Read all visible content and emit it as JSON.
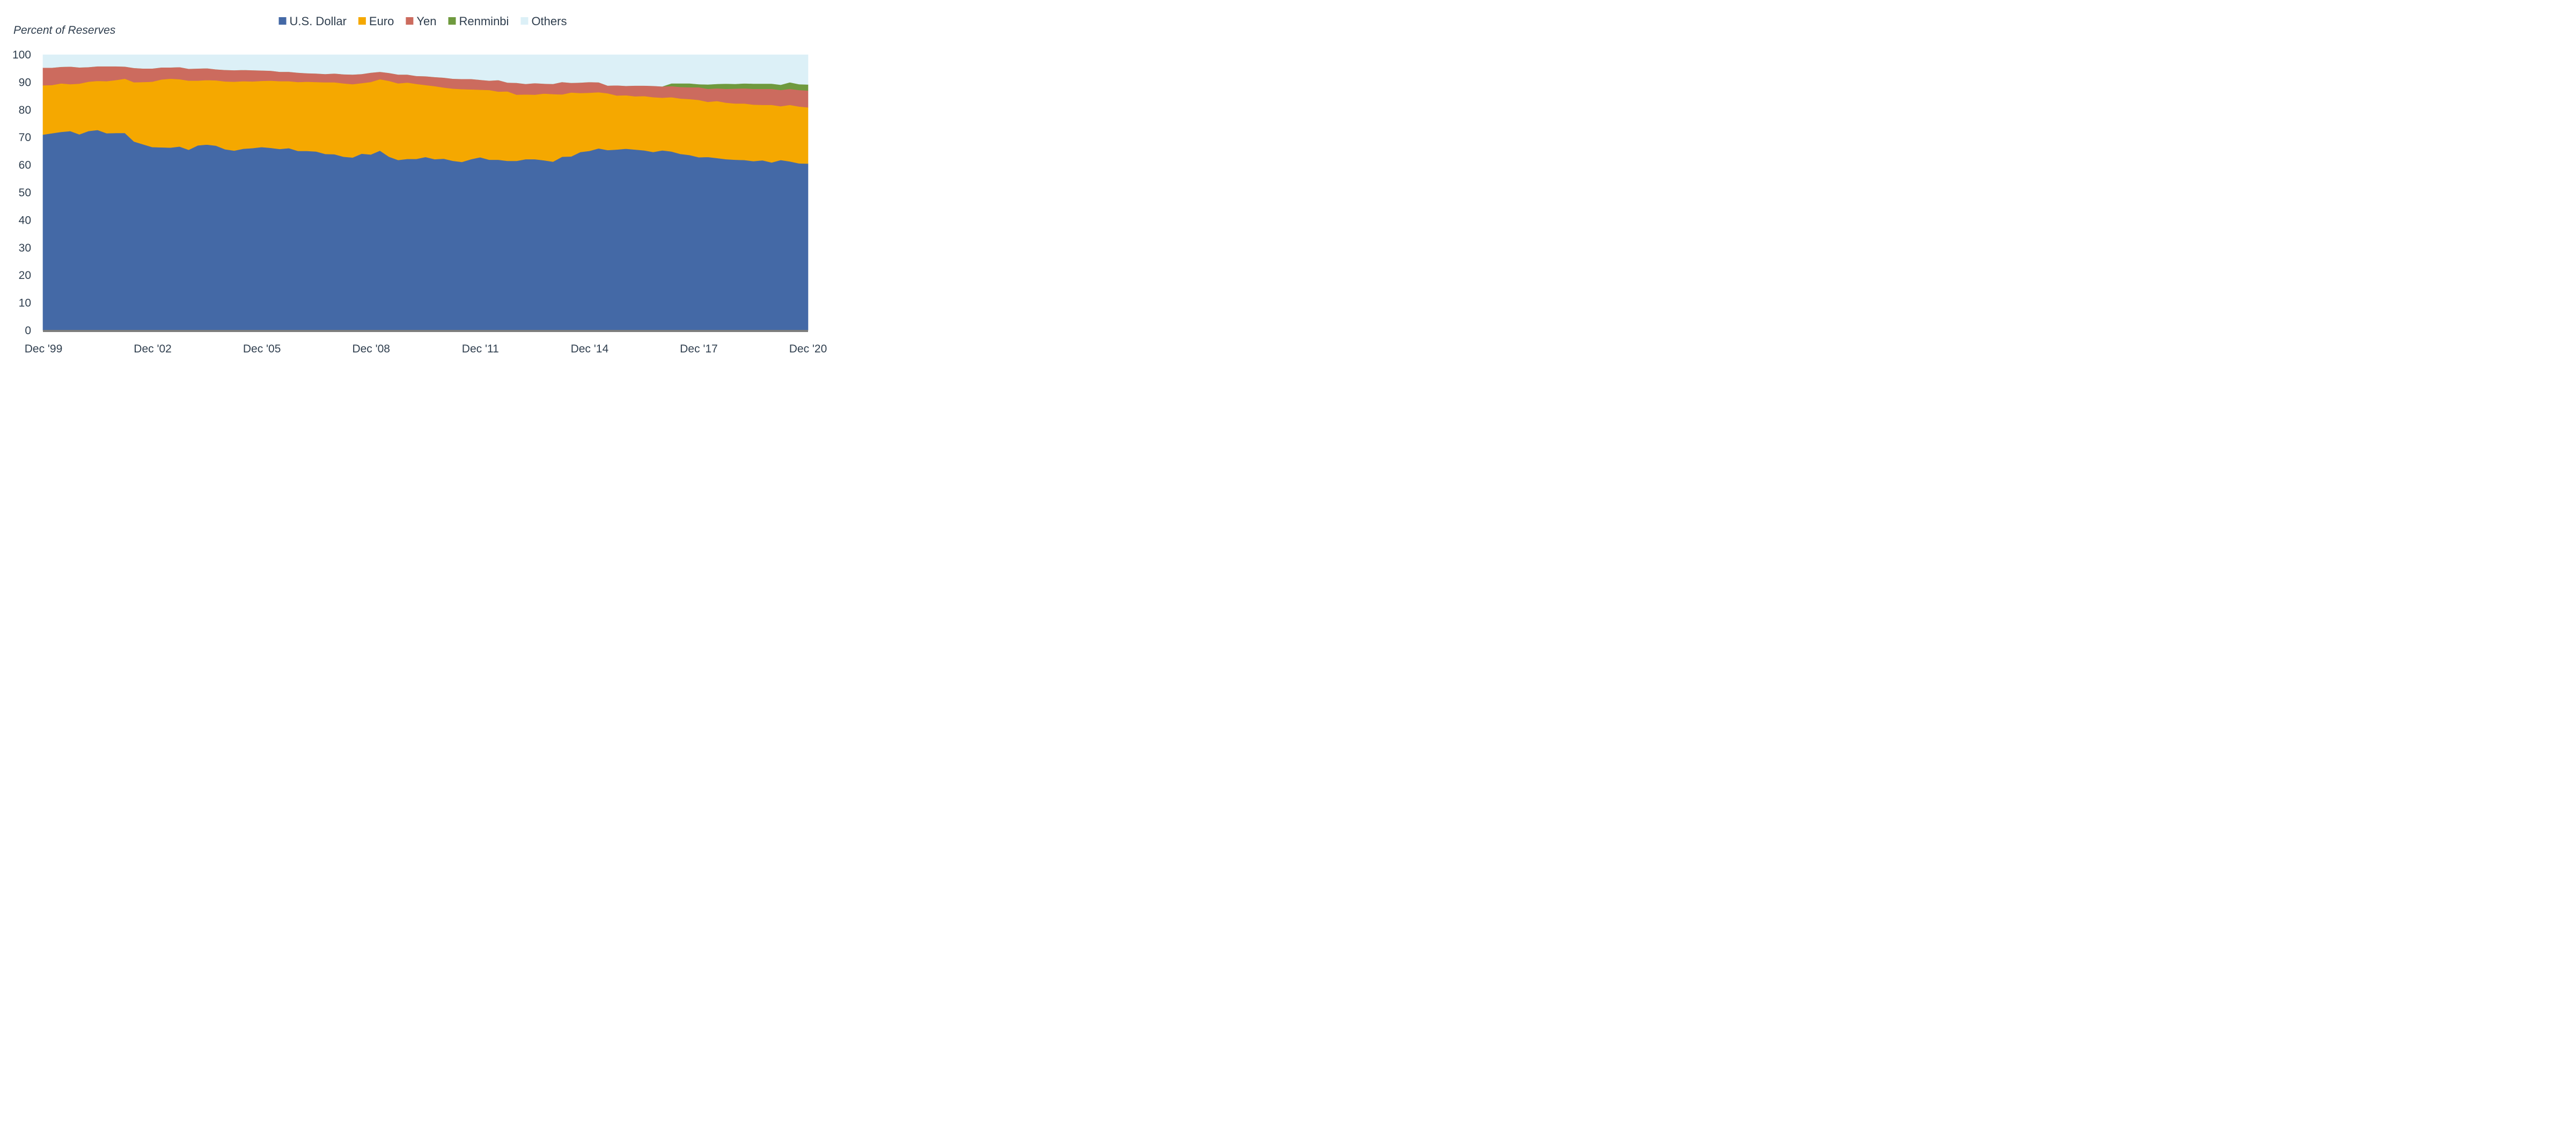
{
  "chart_data": {
    "type": "area",
    "stacked": true,
    "ylabel": "Percent of Reserves",
    "ylim": [
      0,
      100
    ],
    "y_ticks": [
      0,
      10,
      20,
      30,
      40,
      50,
      60,
      70,
      80,
      90,
      100
    ],
    "x_tick_labels": [
      "Dec '99",
      "Dec '02",
      "Dec '05",
      "Dec '08",
      "Dec '11",
      "Dec '14",
      "Dec '17",
      "Dec '20"
    ],
    "x_start": "Dec 1999",
    "x_end": "Dec 2020",
    "frequency": "quarterly",
    "legend_position": "top",
    "grid": false,
    "series": [
      {
        "name": "U.S. Dollar",
        "color": "#4469a6",
        "values": [
          71.0,
          71.5,
          72.0,
          72.3,
          71.1,
          72.3,
          72.7,
          71.5,
          71.6,
          71.6,
          68.5,
          67.5,
          66.5,
          66.4,
          66.3,
          66.7,
          65.5,
          67.1,
          67.4,
          67.0,
          65.7,
          65.2,
          65.9,
          66.1,
          66.5,
          66.2,
          65.8,
          66.1,
          65.1,
          65.1,
          64.9,
          64.0,
          63.9,
          63.0,
          62.7,
          64.1,
          63.8,
          65.2,
          63.0,
          61.8,
          62.2,
          62.2,
          62.9,
          62.1,
          62.3,
          61.5,
          61.1,
          62.1,
          62.8,
          61.9,
          61.9,
          61.5,
          61.5,
          62.1,
          62.1,
          61.7,
          61.2,
          63.0,
          63.1,
          64.7,
          65.1,
          66.0,
          65.4,
          65.6,
          65.9,
          65.6,
          65.3,
          64.7,
          65.3,
          64.9,
          64.0,
          63.6,
          62.8,
          62.9,
          62.5,
          62.1,
          61.9,
          61.8,
          61.4,
          61.7,
          60.9,
          61.8,
          61.3,
          60.6,
          60.5
        ],
        "upper_edge_values": [
          71.0,
          71.5,
          72.0,
          72.3,
          71.1,
          72.3,
          72.7,
          71.5,
          71.6,
          71.6,
          68.5,
          67.5,
          66.5,
          66.4,
          66.3,
          66.7,
          65.5,
          67.1,
          67.4,
          67.0,
          65.7,
          65.2,
          65.9,
          66.1,
          66.5,
          66.2,
          65.8,
          66.1,
          65.1,
          65.1,
          64.9,
          64.0,
          63.9,
          63.0,
          62.7,
          64.1,
          63.8,
          65.2,
          63.0,
          61.8,
          62.2,
          62.2,
          62.9,
          62.1,
          62.3,
          61.5,
          61.1,
          62.1,
          62.8,
          61.9,
          61.9,
          61.5,
          61.5,
          62.1,
          62.1,
          61.7,
          61.2,
          63.0,
          63.1,
          64.7,
          65.1,
          66.0,
          65.4,
          65.6,
          65.9,
          65.6,
          65.3,
          64.7,
          65.3,
          64.9,
          64.0,
          63.6,
          62.8,
          62.9,
          62.5,
          62.1,
          61.9,
          61.8,
          61.4,
          61.7,
          60.9,
          61.8,
          61.3,
          60.6,
          60.5
        ]
      },
      {
        "name": "Euro",
        "color": "#f5a800",
        "upper_edge_values": [
          88.9,
          89.0,
          89.6,
          89.3,
          89.5,
          90.2,
          90.5,
          90.4,
          90.8,
          91.3,
          90.0,
          90.1,
          90.2,
          91.0,
          91.3,
          91.1,
          90.6,
          90.6,
          90.8,
          90.7,
          90.3,
          90.2,
          90.4,
          90.3,
          90.5,
          90.6,
          90.4,
          90.4,
          90.1,
          90.2,
          90.1,
          90.0,
          90.0,
          89.6,
          89.3,
          89.7,
          90.1,
          91.1,
          90.5,
          89.6,
          89.9,
          89.4,
          89.0,
          88.6,
          88.1,
          87.7,
          87.5,
          87.4,
          87.3,
          87.2,
          86.6,
          86.7,
          85.5,
          85.6,
          85.5,
          85.9,
          85.7,
          85.6,
          86.3,
          86.1,
          86.2,
          86.4,
          86.0,
          85.2,
          85.3,
          84.9,
          85.0,
          84.6,
          84.4,
          84.6,
          84.1,
          83.9,
          83.6,
          82.9,
          83.2,
          82.6,
          82.3,
          82.3,
          81.9,
          81.8,
          81.8,
          81.3,
          81.8,
          81.2,
          80.9
        ]
      },
      {
        "name": "Yen",
        "color": "#cc6b5e",
        "upper_edge_values": [
          95.3,
          95.3,
          95.6,
          95.7,
          95.4,
          95.5,
          95.8,
          95.8,
          95.8,
          95.7,
          95.2,
          95.0,
          95.0,
          95.4,
          95.4,
          95.5,
          94.9,
          95.0,
          95.1,
          94.7,
          94.5,
          94.4,
          94.5,
          94.4,
          94.3,
          94.2,
          93.8,
          93.8,
          93.5,
          93.3,
          93.2,
          93.0,
          93.2,
          92.9,
          92.8,
          93.0,
          93.5,
          93.8,
          93.4,
          92.8,
          92.8,
          92.3,
          92.2,
          91.9,
          91.7,
          91.3,
          91.2,
          91.2,
          90.9,
          90.6,
          90.8,
          89.9,
          89.8,
          89.4,
          89.7,
          89.5,
          89.4,
          90.1,
          89.8,
          89.9,
          90.1,
          90.0,
          88.8,
          88.9,
          88.7,
          88.8,
          88.8,
          88.7,
          88.5,
          88.6,
          88.3,
          88.2,
          88.2,
          87.6,
          87.8,
          87.6,
          87.7,
          87.8,
          87.6,
          87.6,
          87.6,
          87.2,
          87.6,
          87.2,
          87.0
        ]
      },
      {
        "name": "Renminbi",
        "color": "#6f9a3e",
        "upper_edge_values": [
          95.3,
          95.3,
          95.6,
          95.7,
          95.4,
          95.5,
          95.8,
          95.8,
          95.8,
          95.7,
          95.2,
          95.0,
          95.0,
          95.4,
          95.4,
          95.5,
          94.9,
          95.0,
          95.1,
          94.7,
          94.5,
          94.4,
          94.5,
          94.4,
          94.3,
          94.2,
          93.8,
          93.8,
          93.5,
          93.3,
          93.2,
          93.0,
          93.2,
          92.9,
          92.8,
          93.0,
          93.5,
          93.8,
          93.4,
          92.8,
          92.8,
          92.3,
          92.2,
          91.9,
          91.7,
          91.3,
          91.2,
          91.2,
          90.9,
          90.6,
          90.8,
          89.9,
          89.8,
          89.4,
          89.7,
          89.5,
          89.4,
          90.1,
          89.8,
          89.9,
          90.1,
          90.0,
          88.8,
          88.9,
          88.7,
          88.8,
          88.8,
          88.7,
          88.5,
          89.6,
          89.6,
          89.6,
          89.3,
          89.2,
          89.4,
          89.5,
          89.4,
          89.6,
          89.5,
          89.5,
          89.5,
          89.1,
          90.0,
          89.3,
          89.2
        ]
      },
      {
        "name": "Others",
        "color": "#dcf0f7",
        "upper_edge_values": [
          100,
          100,
          100,
          100,
          100,
          100,
          100,
          100,
          100,
          100,
          100,
          100,
          100,
          100,
          100,
          100,
          100,
          100,
          100,
          100,
          100,
          100,
          100,
          100,
          100,
          100,
          100,
          100,
          100,
          100,
          100,
          100,
          100,
          100,
          100,
          100,
          100,
          100,
          100,
          100,
          100,
          100,
          100,
          100,
          100,
          100,
          100,
          100,
          100,
          100,
          100,
          100,
          100,
          100,
          100,
          100,
          100,
          100,
          100,
          100,
          100,
          100,
          100,
          100,
          100,
          100,
          100,
          100,
          100,
          100,
          100,
          100,
          100,
          100,
          100,
          100,
          100,
          100,
          100,
          100,
          100,
          100,
          100,
          100,
          100
        ]
      }
    ]
  }
}
